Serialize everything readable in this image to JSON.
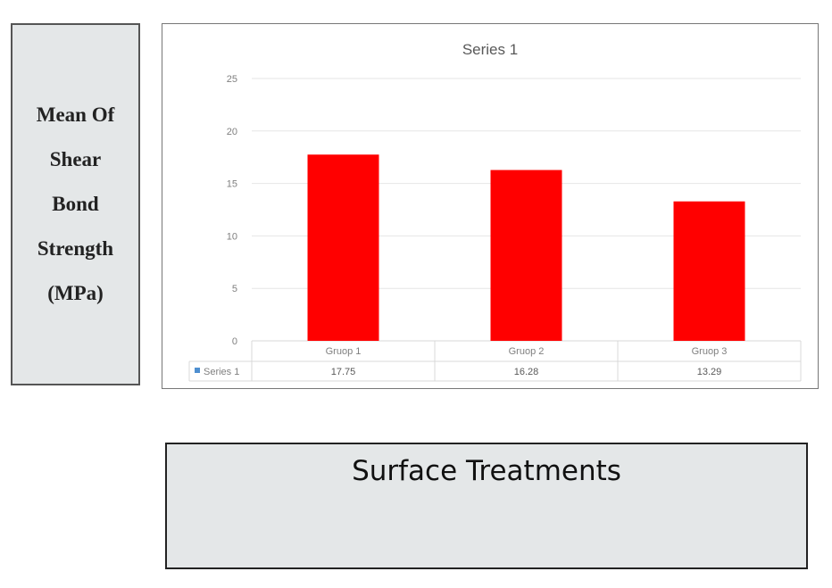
{
  "y_axis_label_lines": [
    "Mean Of",
    "Shear",
    "Bond",
    "Strength",
    "(MPa)"
  ],
  "x_axis_label": "Surface Treatments",
  "colors": {
    "bar": "#ff0000",
    "legend_key": "#4f8fd0",
    "grid": "#e6e6e6",
    "table_border": "#d9d9d9"
  },
  "chart_data": {
    "type": "bar",
    "title": "Series 1",
    "categories": [
      "Gruop 1",
      "Gruop 2",
      "Gruop 3"
    ],
    "series": [
      {
        "name": "Series 1",
        "values": [
          17.75,
          16.28,
          13.29
        ]
      }
    ],
    "table_values": [
      "17.75",
      "16.28",
      "13.29"
    ],
    "ylim": [
      0,
      25
    ],
    "yticks": [
      0,
      5,
      10,
      15,
      20,
      25
    ],
    "grid": true,
    "legend": "data-table"
  }
}
